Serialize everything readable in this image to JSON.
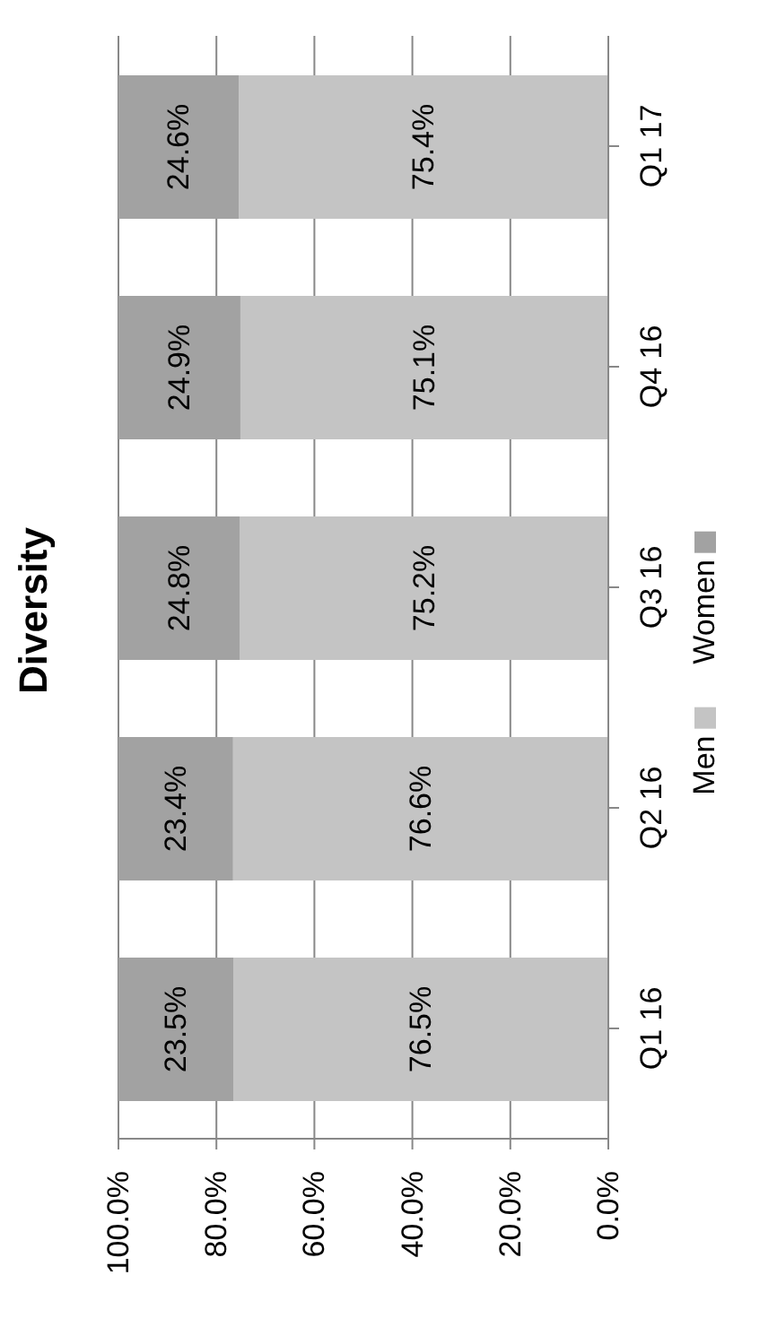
{
  "chart_data": {
    "type": "bar",
    "title": "Diversity",
    "orientation": "horizontal",
    "categories": [
      "Q1 17",
      "Q4 16",
      "Q3 16",
      "Q2 16",
      "Q1 16"
    ],
    "stacked": true,
    "series": [
      {
        "name": "Men",
        "color": "#c4c4c4",
        "values": [
          75.4,
          75.1,
          75.2,
          76.6,
          76.5
        ],
        "value_labels": [
          "75.4%",
          "75.1%",
          "75.2%",
          "76.6%",
          "76.5%"
        ]
      },
      {
        "name": "Women",
        "color": "#a2a2a2",
        "values": [
          24.6,
          24.9,
          24.8,
          23.4,
          23.5
        ],
        "value_labels": [
          "24.6%",
          "24.9%",
          "24.8%",
          "23.4%",
          "23.5%"
        ]
      }
    ],
    "xlim": [
      100,
      0
    ],
    "xticks": [
      {
        "value": 0,
        "label": "0.0%"
      },
      {
        "value": 20,
        "label": "20.0%"
      },
      {
        "value": 40,
        "label": "40.0%"
      },
      {
        "value": 60,
        "label": "60.0%"
      },
      {
        "value": 80,
        "label": "80.0%"
      },
      {
        "value": 100,
        "label": "100.0%"
      }
    ],
    "grid": "x",
    "legend": "right"
  }
}
